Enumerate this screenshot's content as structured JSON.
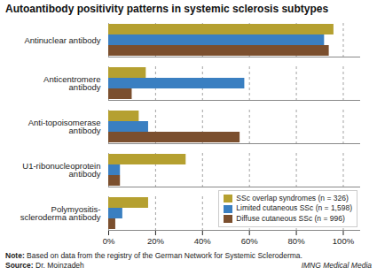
{
  "chart_data": {
    "type": "bar",
    "orientation": "horizontal",
    "title": "Autoantibody positivity patterns in systemic sclerosis subtypes",
    "categories": [
      "Polymyositis-\nscleroderma antibody",
      "U1-ribonucleoprotein\nantibody",
      "Anti-topoisomerase\nantibody",
      "Anticentromere\nantibody",
      "Antinuclear antibody"
    ],
    "series": [
      {
        "name": "SSc overlap syndromes (n = 326)",
        "color": "#b5a030",
        "values": [
          17,
          33,
          13,
          16,
          96
        ]
      },
      {
        "name": "Limited cutaneous SSc (n = 1,598)",
        "color": "#3a7fc1",
        "values": [
          6,
          5,
          17,
          58,
          92
        ]
      },
      {
        "name": "Diffuse cutaneous SSc (n = 996)",
        "color": "#7b4f2e",
        "values": [
          3,
          5,
          56,
          10,
          94
        ]
      }
    ],
    "xlim": [
      0,
      107
    ],
    "xticks": [
      {
        "value": 0,
        "label": "0%"
      },
      {
        "value": 20,
        "label": "20%"
      },
      {
        "value": 40,
        "label": "40%"
      },
      {
        "value": 60,
        "label": "60%"
      },
      {
        "value": 80,
        "label": "80%"
      },
      {
        "value": 100,
        "label": "100%"
      }
    ],
    "grid": true,
    "legend": "lower right",
    "note": "Note: Based on data from the registry of the German Network for Systemic Scleroderma.",
    "source": "Source: Dr. Moinzadeh",
    "credit": "IMNG Medical Media"
  }
}
